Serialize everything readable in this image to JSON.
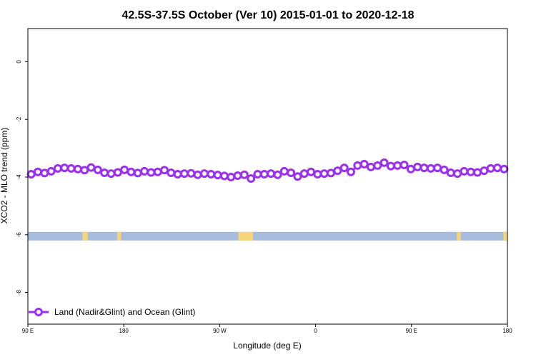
{
  "chart_data": {
    "type": "line",
    "title": "42.5S-37.5S October (Ver 10)   2015-01-01 to 2020-12-18",
    "xlabel": "Longitude (deg E)",
    "ylabel": "XCO2 - MLO trend (ppm)",
    "xlim": [
      90,
      450
    ],
    "ylim": [
      -9.1,
      1.15
    ],
    "x_ticks": [
      {
        "value": 90,
        "label": "90 E"
      },
      {
        "value": 162,
        "label": "180"
      },
      {
        "value": 234,
        "label": "90 W"
      },
      {
        "value": 306,
        "label": "0"
      },
      {
        "value": 378,
        "label": "90 E"
      },
      {
        "value": 450,
        "label": "180"
      }
    ],
    "y_ticks": [
      {
        "value": 0,
        "label": "0"
      },
      {
        "value": -2,
        "label": "-2"
      },
      {
        "value": -4,
        "label": "-4"
      },
      {
        "value": -6,
        "label": "-6"
      },
      {
        "value": -8,
        "label": "-8"
      }
    ],
    "grid": false,
    "legend_position": "bottom-left",
    "series": [
      {
        "name": "Land (Nadir&Glint) and Ocean (Glint)",
        "color": "#9b30f0",
        "x": [
          92.5,
          97.5,
          102.5,
          107.5,
          112.5,
          117.5,
          122.5,
          127.5,
          132.5,
          137.5,
          142.5,
          147.5,
          152.5,
          157.5,
          162.5,
          167.5,
          172.5,
          177.5,
          182.5,
          187.5,
          192.5,
          197.5,
          202.5,
          207.5,
          212.5,
          217.5,
          222.5,
          227.5,
          232.5,
          237.5,
          242.5,
          247.5,
          252.5,
          257.5,
          262.5,
          267.5,
          272.5,
          277.5,
          282.5,
          287.5,
          292.5,
          297.5,
          302.5,
          307.5,
          312.5,
          317.5,
          322.5,
          327.5,
          332.5,
          337.5,
          342.5,
          347.5,
          352.5,
          357.5,
          362.5,
          367.5,
          372.5,
          377.5,
          382.5,
          387.5,
          392.5,
          397.5,
          402.5,
          407.5,
          412.5,
          417.5,
          422.5,
          427.5,
          432.5,
          437.5,
          442.5,
          447.5
        ],
        "y": [
          -3.9,
          -3.82,
          -3.86,
          -3.8,
          -3.7,
          -3.68,
          -3.7,
          -3.72,
          -3.76,
          -3.67,
          -3.75,
          -3.85,
          -3.88,
          -3.84,
          -3.75,
          -3.82,
          -3.86,
          -3.8,
          -3.84,
          -3.82,
          -3.76,
          -3.85,
          -3.9,
          -3.88,
          -3.87,
          -3.92,
          -3.88,
          -3.9,
          -3.93,
          -3.96,
          -4.0,
          -3.95,
          -3.92,
          -4.05,
          -3.9,
          -3.9,
          -3.88,
          -3.92,
          -3.8,
          -3.85,
          -3.98,
          -3.88,
          -3.82,
          -3.9,
          -3.88,
          -3.86,
          -3.78,
          -3.68,
          -3.82,
          -3.6,
          -3.55,
          -3.65,
          -3.6,
          -3.5,
          -3.62,
          -3.6,
          -3.58,
          -3.72,
          -3.65,
          -3.68,
          -3.7,
          -3.68,
          -3.75,
          -3.85,
          -3.88,
          -3.8,
          -3.82,
          -3.84,
          -3.78,
          -3.7,
          -3.68,
          -3.72
        ]
      }
    ],
    "surface_strip": {
      "y_value": -6.05,
      "ocean_color": "#a5bcdc",
      "land_color": "#f6d57a",
      "land_ranges": [
        [
          131,
          135
        ],
        [
          157,
          160
        ],
        [
          248,
          259
        ],
        [
          412,
          415
        ],
        [
          447,
          450
        ]
      ]
    }
  }
}
